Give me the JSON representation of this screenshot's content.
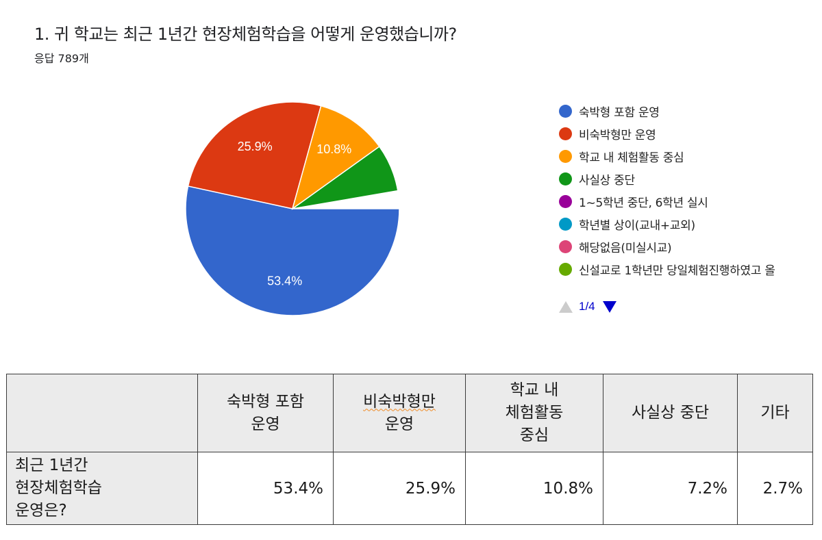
{
  "question": {
    "title": "1. 귀 학교는 최근 1년간 현장체험학습을 어떻게 운영했습니까?",
    "responses": "응답 789개"
  },
  "chart_data": {
    "type": "pie",
    "title": "1. 귀 학교는 최근 1년간 현장체험학습을 어떻게 운영했습니까?",
    "subtitle": "응답 789개",
    "start_angle": "east (3 o'clock), clockwise",
    "labels": [
      "숙박형 포함 운영",
      "비숙박형만 운영",
      "학교 내 체험활동 중심",
      "사실상 중단",
      "1~5학년 중단, 6학년 실시",
      "학년별 상이(교내+교외)",
      "해당없음(미실시교)",
      "신설교로 1학년만 당일체험진행하였고 올"
    ],
    "values": [
      53.4,
      25.9,
      10.8,
      7.2,
      null,
      null,
      null,
      null
    ],
    "data_labels": [
      "53.4%",
      "25.9%",
      "10.8%",
      "",
      "",
      "",
      "",
      ""
    ],
    "colors": [
      "#3366cc",
      "#dc3912",
      "#ff9900",
      "#109618",
      "#990099",
      "#0099c6",
      "#dd4477",
      "#66aa00"
    ],
    "remaining_small_slices_total": 2.7,
    "legend_position": "right",
    "legend_page": "1/4"
  },
  "legend": {
    "items": [
      {
        "label": "숙박형 포함 운영",
        "color": "#3366cc"
      },
      {
        "label": "비숙박형만 운영",
        "color": "#dc3912"
      },
      {
        "label": "학교 내 체험활동 중심",
        "color": "#ff9900"
      },
      {
        "label": "사실상 중단",
        "color": "#109618"
      },
      {
        "label": "1~5학년 중단, 6학년 실시",
        "color": "#990099"
      },
      {
        "label": "학년별 상이(교내+교외)",
        "color": "#0099c6"
      },
      {
        "label": "해당없음(미실시교)",
        "color": "#dd4477"
      },
      {
        "label": "신설교로 1학년만 당일체험진행하였고 올",
        "color": "#66aa00"
      }
    ],
    "pager": "1/4"
  },
  "table": {
    "headers": [
      "",
      "숙박형 포함 운영",
      "비숙박형만 운영",
      "학교 내 체험활동 중심",
      "사실상 중단",
      "기타"
    ],
    "header_lines": [
      [
        ""
      ],
      [
        "숙박형 포함",
        "운영"
      ],
      [
        "비숙박형만",
        "운영"
      ],
      [
        "학교 내",
        "체험활동",
        "중심"
      ],
      [
        "사실상 중단"
      ],
      [
        "기타"
      ]
    ],
    "row_label_lines": [
      "최근 1년간",
      "현장체험학습",
      "운영은?"
    ],
    "row_label": "최근 1년간 현장체험학습 운영은?",
    "values": [
      "53.4%",
      "25.9%",
      "10.8%",
      "7.2%",
      "2.7%"
    ]
  }
}
